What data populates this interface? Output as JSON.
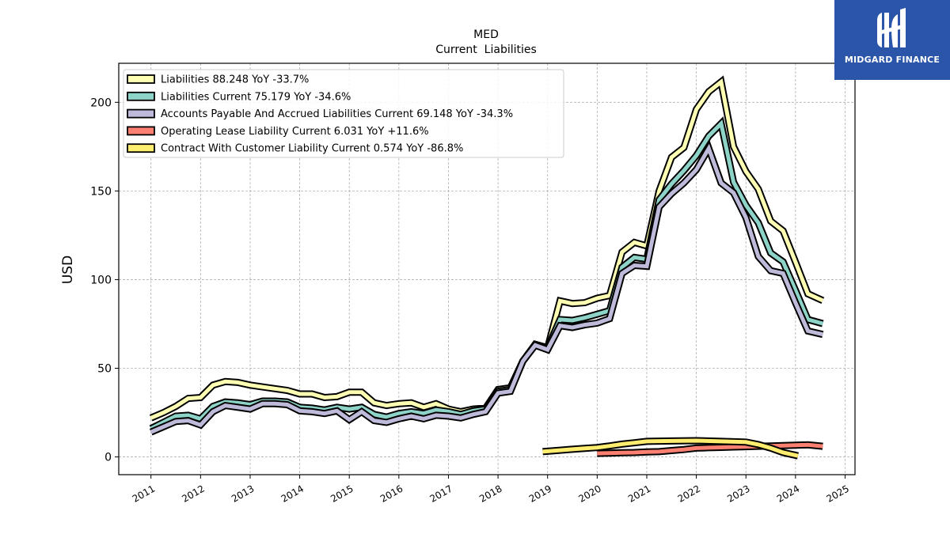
{
  "brand": {
    "name": "MIDGARD FINANCE",
    "color": "#2a55a8"
  },
  "chart_data": {
    "type": "line",
    "title": "MED",
    "subtitle": "Current  Liabilities",
    "xlabel": "",
    "ylabel": "USD",
    "xlim": [
      2010.35,
      2025.2
    ],
    "ylim": [
      -10,
      222
    ],
    "x_ticks": [
      "2011",
      "2012",
      "2013",
      "2014",
      "2015",
      "2016",
      "2017",
      "2018",
      "2019",
      "2020",
      "2021",
      "2022",
      "2023",
      "2024",
      "2025"
    ],
    "y_ticks": [
      "0",
      "50",
      "100",
      "150",
      "200"
    ],
    "grid": true,
    "legend_position": "top-left",
    "series": [
      {
        "name": "Liabilities",
        "legend": "Liabilities  88.248 YoY -33.7%",
        "color": "#ffffb3",
        "points": [
          [
            2011.0,
            22
          ],
          [
            2011.25,
            25
          ],
          [
            2011.5,
            28.5
          ],
          [
            2011.75,
            33
          ],
          [
            2012.0,
            33.5
          ],
          [
            2012.25,
            40.5
          ],
          [
            2012.5,
            42.5
          ],
          [
            2012.75,
            42
          ],
          [
            2013.0,
            40.5
          ],
          [
            2013.25,
            39.5
          ],
          [
            2013.5,
            38.5
          ],
          [
            2013.75,
            37.5
          ],
          [
            2014.0,
            35.5
          ],
          [
            2014.25,
            35.5
          ],
          [
            2014.5,
            33.5
          ],
          [
            2014.75,
            34
          ],
          [
            2015.0,
            36.5
          ],
          [
            2015.25,
            36.5
          ],
          [
            2015.5,
            30.5
          ],
          [
            2015.75,
            29
          ],
          [
            2016.0,
            30
          ],
          [
            2016.25,
            30.5
          ],
          [
            2016.5,
            28
          ],
          [
            2016.75,
            30
          ],
          [
            2017.0,
            27
          ],
          [
            2017.25,
            25.5
          ],
          [
            2017.5,
            27
          ],
          [
            2017.75,
            27.5
          ],
          [
            2018.0,
            38
          ],
          [
            2018.25,
            39
          ],
          [
            2018.5,
            54
          ],
          [
            2018.75,
            63.5
          ],
          [
            2019.0,
            61.5
          ],
          [
            2019.25,
            88
          ],
          [
            2019.5,
            86.5
          ],
          [
            2019.75,
            87
          ],
          [
            2020.0,
            89.5
          ],
          [
            2020.25,
            91
          ],
          [
            2020.5,
            115.5
          ],
          [
            2020.75,
            121
          ],
          [
            2021.0,
            119
          ],
          [
            2021.25,
            150
          ],
          [
            2021.5,
            169
          ],
          [
            2021.75,
            174.5
          ],
          [
            2022.0,
            196
          ],
          [
            2022.25,
            206
          ],
          [
            2022.5,
            211.5
          ],
          [
            2022.75,
            175
          ],
          [
            2023.0,
            161
          ],
          [
            2023.25,
            151
          ],
          [
            2023.5,
            133
          ],
          [
            2023.75,
            127.5
          ],
          [
            2024.0,
            110
          ],
          [
            2024.25,
            92
          ],
          [
            2024.55,
            88.2
          ]
        ]
      },
      {
        "name": "Liabilities Current",
        "legend": "Liabilities Current  75.179 YoY -34.6%",
        "color": "#8dd3c7",
        "points": [
          [
            2011.0,
            16
          ],
          [
            2011.25,
            19.5
          ],
          [
            2011.5,
            23
          ],
          [
            2011.75,
            23.5
          ],
          [
            2012.0,
            21.5
          ],
          [
            2012.25,
            28.5
          ],
          [
            2012.5,
            31
          ],
          [
            2012.75,
            30.5
          ],
          [
            2013.0,
            29.5
          ],
          [
            2013.25,
            31.5
          ],
          [
            2013.5,
            31.5
          ],
          [
            2013.75,
            31
          ],
          [
            2014.0,
            28
          ],
          [
            2014.25,
            27.5
          ],
          [
            2014.5,
            26.5
          ],
          [
            2014.75,
            28
          ],
          [
            2015.0,
            27
          ],
          [
            2015.25,
            28
          ],
          [
            2015.5,
            24
          ],
          [
            2015.75,
            22.5
          ],
          [
            2016.0,
            24.5
          ],
          [
            2016.25,
            25.5
          ],
          [
            2016.5,
            24.5
          ],
          [
            2016.75,
            26.5
          ],
          [
            2017.0,
            25.5
          ],
          [
            2017.25,
            24
          ],
          [
            2017.5,
            26
          ],
          [
            2017.75,
            27
          ],
          [
            2018.0,
            37
          ],
          [
            2018.25,
            38
          ],
          [
            2018.5,
            54
          ],
          [
            2018.75,
            63.5
          ],
          [
            2019.0,
            61.5
          ],
          [
            2019.25,
            77.5
          ],
          [
            2019.5,
            77
          ],
          [
            2019.75,
            78.5
          ],
          [
            2020.0,
            80.5
          ],
          [
            2020.25,
            82.5
          ],
          [
            2020.5,
            107
          ],
          [
            2020.75,
            112.5
          ],
          [
            2021.0,
            111.5
          ],
          [
            2021.25,
            145
          ],
          [
            2021.5,
            154
          ],
          [
            2021.75,
            161.5
          ],
          [
            2022.0,
            170
          ],
          [
            2022.25,
            181
          ],
          [
            2022.5,
            188
          ],
          [
            2022.75,
            155
          ],
          [
            2023.0,
            142
          ],
          [
            2023.25,
            132
          ],
          [
            2023.5,
            115
          ],
          [
            2023.75,
            110
          ],
          [
            2024.0,
            94
          ],
          [
            2024.25,
            77.5
          ],
          [
            2024.55,
            75.2
          ]
        ]
      },
      {
        "name": "Accounts Payable And Accrued Liabilities Current",
        "legend": "Accounts Payable And Accrued Liabilities Current  69.148 YoY -34.3%",
        "color": "#bebada",
        "points": [
          [
            2011.0,
            14
          ],
          [
            2011.25,
            17
          ],
          [
            2011.5,
            20
          ],
          [
            2011.75,
            20.5
          ],
          [
            2012.0,
            18
          ],
          [
            2012.25,
            25.5
          ],
          [
            2012.5,
            29
          ],
          [
            2012.75,
            28
          ],
          [
            2013.0,
            27
          ],
          [
            2013.25,
            30
          ],
          [
            2013.5,
            30
          ],
          [
            2013.75,
            29.5
          ],
          [
            2014.0,
            26
          ],
          [
            2014.25,
            25.5
          ],
          [
            2014.5,
            24.5
          ],
          [
            2014.75,
            26
          ],
          [
            2015.0,
            21
          ],
          [
            2015.25,
            25.5
          ],
          [
            2015.5,
            20.5
          ],
          [
            2015.75,
            19.5
          ],
          [
            2016.0,
            21.5
          ],
          [
            2016.25,
            23
          ],
          [
            2016.5,
            21.5
          ],
          [
            2016.75,
            23.5
          ],
          [
            2017.0,
            23
          ],
          [
            2017.25,
            22
          ],
          [
            2017.5,
            24
          ],
          [
            2017.75,
            25.5
          ],
          [
            2018.0,
            36
          ],
          [
            2018.25,
            37
          ],
          [
            2018.5,
            54
          ],
          [
            2018.75,
            63
          ],
          [
            2019.0,
            60.5
          ],
          [
            2019.25,
            74
          ],
          [
            2019.5,
            73
          ],
          [
            2019.75,
            74.5
          ],
          [
            2020.0,
            75.5
          ],
          [
            2020.25,
            78
          ],
          [
            2020.5,
            103.5
          ],
          [
            2020.75,
            108
          ],
          [
            2021.0,
            107.5
          ],
          [
            2021.25,
            141
          ],
          [
            2021.5,
            148.5
          ],
          [
            2021.75,
            154.5
          ],
          [
            2022.0,
            162
          ],
          [
            2022.25,
            174
          ],
          [
            2022.5,
            154.5
          ],
          [
            2022.75,
            149
          ],
          [
            2023.0,
            135
          ],
          [
            2023.25,
            113
          ],
          [
            2023.5,
            105
          ],
          [
            2023.75,
            103.5
          ],
          [
            2024.0,
            87
          ],
          [
            2024.25,
            71
          ],
          [
            2024.55,
            69.1
          ]
        ]
      },
      {
        "name": "Operating Lease Liability Current",
        "legend": "Operating Lease Liability Current  6.031 YoY +11.6%",
        "color": "#fb8072",
        "points": [
          [
            2020.0,
            2
          ],
          [
            2020.25,
            2.2
          ],
          [
            2020.5,
            2.4
          ],
          [
            2020.75,
            2.5
          ],
          [
            2021.0,
            2.8
          ],
          [
            2021.25,
            3
          ],
          [
            2021.5,
            3.6
          ],
          [
            2021.75,
            4.2
          ],
          [
            2022.0,
            5
          ],
          [
            2022.25,
            5.2
          ],
          [
            2022.5,
            5.4
          ],
          [
            2022.75,
            5.6
          ],
          [
            2023.0,
            5.8
          ],
          [
            2023.25,
            6
          ],
          [
            2023.5,
            6.2
          ],
          [
            2023.75,
            6.4
          ],
          [
            2024.0,
            6.6
          ],
          [
            2024.25,
            6.8
          ],
          [
            2024.55,
            6.0
          ]
        ]
      },
      {
        "name": "Contract With Customer Liability Current",
        "legend": "Contract With Customer Liability Current  0.574 YoY -86.8%",
        "color": "#ffed6f",
        "points": [
          [
            2018.9,
            3
          ],
          [
            2019.25,
            3.8
          ],
          [
            2019.5,
            4.3
          ],
          [
            2019.75,
            4.8
          ],
          [
            2020.0,
            5.3
          ],
          [
            2020.25,
            6.2
          ],
          [
            2020.5,
            7.2
          ],
          [
            2020.75,
            8
          ],
          [
            2021.0,
            8.8
          ],
          [
            2021.5,
            9
          ],
          [
            2022.0,
            9.2
          ],
          [
            2022.5,
            8.8
          ],
          [
            2023.0,
            8.4
          ],
          [
            2023.25,
            7
          ],
          [
            2023.5,
            5
          ],
          [
            2023.75,
            2.5
          ],
          [
            2024.05,
            0.6
          ]
        ]
      }
    ]
  }
}
